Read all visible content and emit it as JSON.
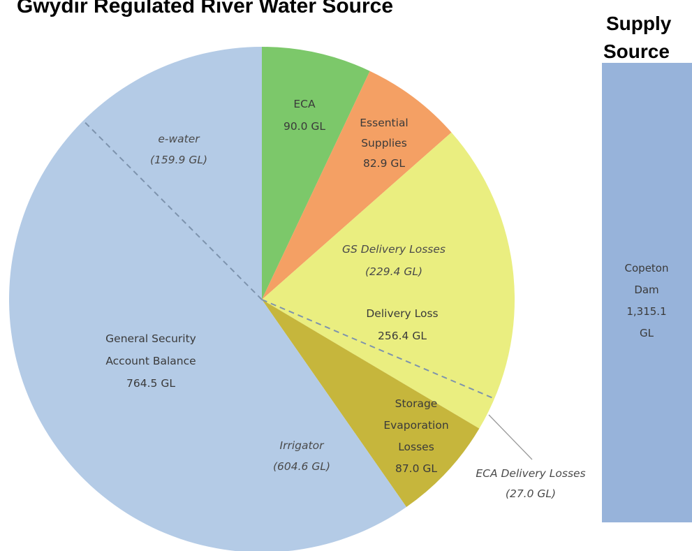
{
  "chart_data": {
    "type": "pie",
    "title": "Gwydir Regulated River Water Source",
    "slices": [
      {
        "label": "ECA",
        "value": 90.0,
        "unit": "GL",
        "value_text": "90.0 GL",
        "color": "#7cc86a"
      },
      {
        "label": "Essential Supplies",
        "value": 82.9,
        "unit": "GL",
        "value_text": "82.9 GL",
        "color": "#f4a064"
      },
      {
        "label": "Delivery Loss",
        "value": 256.4,
        "unit": "GL",
        "value_text": "256.4 GL",
        "color": "#eaee80"
      },
      {
        "label": "Storage Evaporation Losses",
        "value": 87.0,
        "unit": "GL",
        "value_text": "87.0 GL",
        "color": "#c6b63c"
      },
      {
        "label": "General Security Account Balance",
        "value": 764.5,
        "unit": "GL",
        "value_text": "764.5 GL",
        "color": "#b4cbe6"
      }
    ],
    "sub_divisions": [
      {
        "label": "e-water",
        "value": 159.9,
        "value_text": "(159.9 GL)",
        "within": "General Security Account Balance"
      },
      {
        "label": "Irrigator",
        "value": 604.6,
        "value_text": "(604.6 GL)",
        "within": "General Security Account Balance"
      },
      {
        "label": "GS Delivery Losses",
        "value": 229.4,
        "value_text": "(229.4 GL)",
        "within": "Delivery Loss"
      },
      {
        "label": "ECA Delivery Losses",
        "value": 27.0,
        "value_text": "(27.0 GL)",
        "within": "Delivery Loss"
      }
    ],
    "supply_source": {
      "heading_line1": "Supply",
      "heading_line2": "Source",
      "bar_label_lines": [
        "Copeton",
        "Dam",
        "1,315.1",
        "GL"
      ],
      "value": 1315.1,
      "unit": "GL",
      "color": "#97b3da"
    },
    "divider_color": "#7d93ad",
    "leader_color": "#9a9a9a"
  },
  "labels": {
    "eca": [
      "ECA",
      "90.0 GL"
    ],
    "essential": [
      "Essential",
      "Supplies",
      "82.9 GL"
    ],
    "delivery": [
      "Delivery Loss",
      "256.4 GL"
    ],
    "storage": [
      "Storage",
      "Evaporation",
      "Losses",
      "87.0 GL"
    ],
    "general": [
      "General Security",
      "Account Balance",
      "764.5 GL"
    ],
    "ewater": [
      "e-water",
      "(159.9 GL)"
    ],
    "irrigator": [
      "Irrigator",
      "(604.6 GL)"
    ],
    "gs_losses": [
      "GS Delivery Losses",
      "(229.4 GL)"
    ],
    "eca_losses": [
      "ECA Delivery Losses",
      "(27.0 GL)"
    ]
  }
}
